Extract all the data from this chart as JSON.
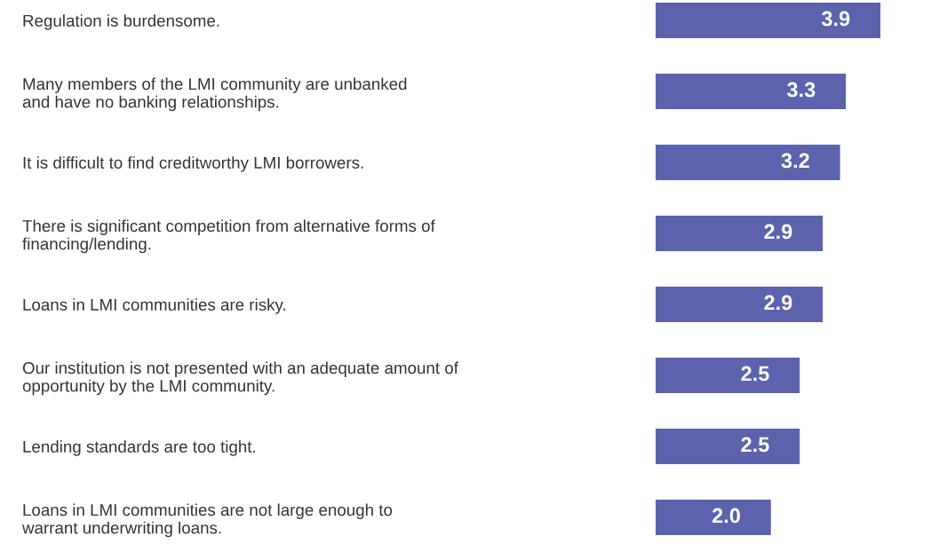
{
  "chart_data": {
    "type": "bar",
    "orientation": "horizontal",
    "categories": [
      "Regulation is burdensome.",
      "Many members of the LMI community are unbanked\nand have no banking relationships.",
      "It is difficult to find creditworthy LMI borrowers.",
      "There is significant competition from alternative forms of\nfinancing/lending.",
      "Loans in LMI communities are risky.",
      "Our institution is not presented with an adequate amount of\nopportunity by the LMI community.",
      "Lending standards are too tight.",
      "Loans in LMI communities are not large enough to\nwarrant underwriting loans."
    ],
    "values": [
      3.9,
      3.3,
      3.2,
      2.9,
      2.9,
      2.5,
      2.5,
      2.0
    ],
    "value_labels": [
      "3.9",
      "3.3",
      "3.2",
      "2.9",
      "2.9",
      "2.5",
      "2.5",
      "2.0"
    ],
    "color": "#5c62ac",
    "tick_labels": "y"
  }
}
